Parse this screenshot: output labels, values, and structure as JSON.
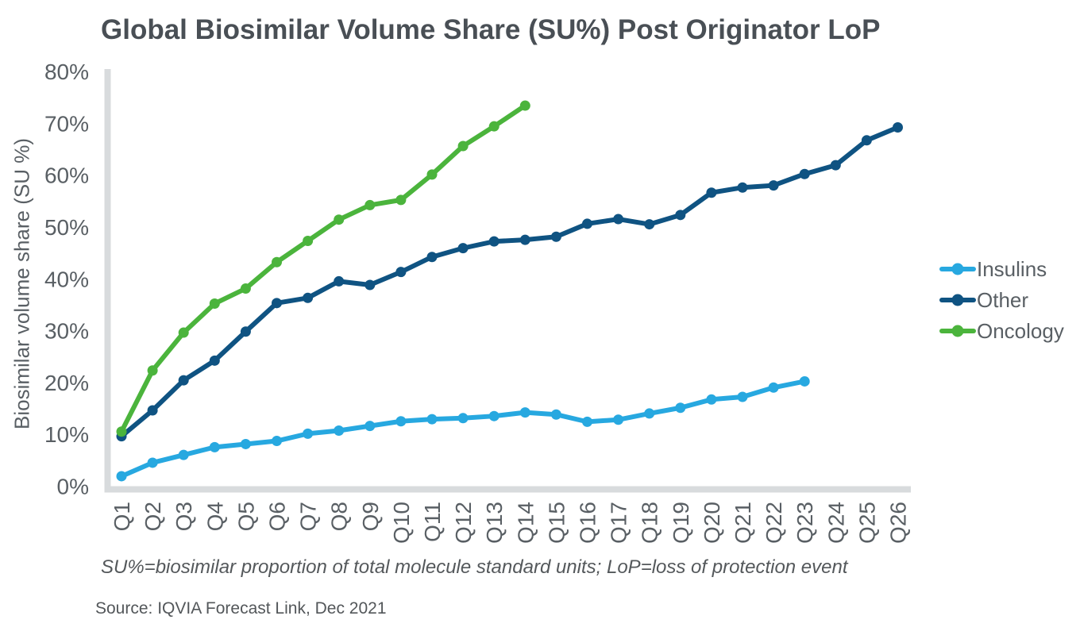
{
  "page": {
    "footnote": "SU%=biosimilar proportion of total molecule standard units; LoP=loss of protection event",
    "source": "Source: IQVIA Forecast Link, Dec 2021"
  },
  "chart_data": {
    "type": "line",
    "title": "Global Biosimilar Volume Share (SU%) Post Originator LoP",
    "xlabel": "",
    "ylabel": "Biosimilar volume share (SU %)",
    "categories": [
      "Q1",
      "Q2",
      "Q3",
      "Q4",
      "Q5",
      "Q6",
      "Q7",
      "Q8",
      "Q9",
      "Q10",
      "Q11",
      "Q12",
      "Q13",
      "Q14",
      "Q15",
      "Q16",
      "Q17",
      "Q18",
      "Q19",
      "Q20",
      "Q21",
      "Q22",
      "Q23",
      "Q24",
      "Q25",
      "Q26"
    ],
    "ylim": [
      0,
      80
    ],
    "ytick_step": 10,
    "ytick_labels": [
      "0%",
      "10%",
      "20%",
      "30%",
      "40%",
      "50%",
      "60%",
      "70%",
      "80%"
    ],
    "grid": false,
    "markers": true,
    "legend_position": "right",
    "axis_color": "#D8DBDD",
    "series": [
      {
        "name": "Insulins",
        "color": "#27A8E0",
        "values": [
          2.0,
          4.6,
          6.1,
          7.6,
          8.2,
          8.8,
          10.2,
          10.8,
          11.7,
          12.6,
          13.0,
          13.2,
          13.6,
          14.3,
          13.9,
          12.5,
          12.9,
          14.1,
          15.2,
          16.8,
          17.3,
          19.1,
          20.3,
          null,
          null,
          null
        ]
      },
      {
        "name": "Other",
        "color": "#0F5382",
        "values": [
          9.7,
          14.7,
          20.5,
          24.3,
          29.9,
          35.4,
          36.4,
          39.6,
          38.9,
          41.4,
          44.3,
          46.0,
          47.3,
          47.6,
          48.2,
          50.7,
          51.6,
          50.6,
          52.4,
          56.7,
          57.7,
          58.1,
          60.3,
          62.0,
          66.8,
          69.3
        ]
      },
      {
        "name": "Oncology",
        "color": "#4BB43C",
        "values": [
          10.6,
          22.4,
          29.7,
          35.3,
          38.2,
          43.3,
          47.4,
          51.5,
          54.3,
          55.3,
          60.2,
          65.7,
          69.5,
          73.5,
          null,
          null,
          null,
          null,
          null,
          null,
          null,
          null,
          null,
          null,
          null,
          null
        ]
      }
    ]
  }
}
